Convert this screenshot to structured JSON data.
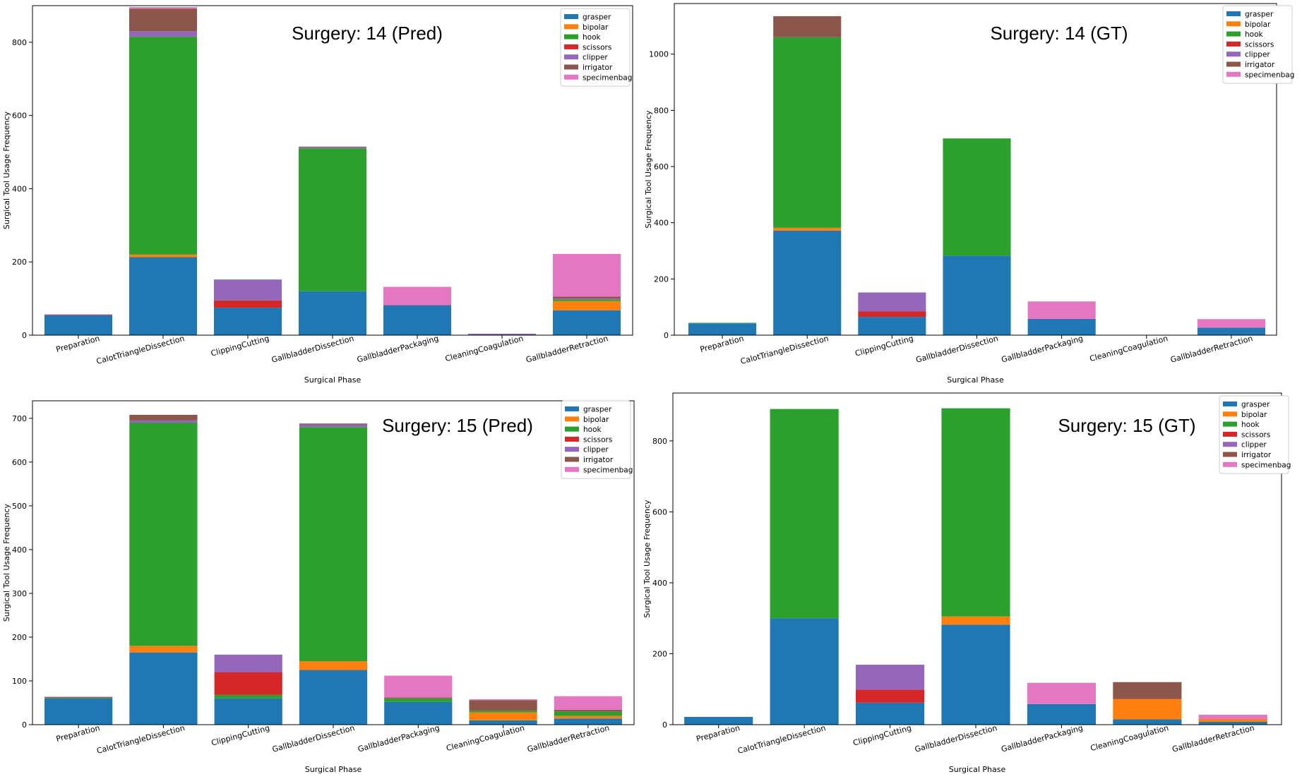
{
  "colors": {
    "grasper": "#1f77b4",
    "bipolar": "#ff7f0e",
    "hook": "#2ca02c",
    "scissors": "#d62728",
    "clipper": "#9467bd",
    "irrigator": "#8c564b",
    "specimenbag": "#e377c2"
  },
  "chart_data": [
    {
      "type": "bar",
      "stacked": true,
      "title": "Surgery: 14 (Pred)",
      "xlabel": "Surgical Phase",
      "ylabel": "Surgical Tool Usage Frequency",
      "ylim": [
        0,
        900
      ],
      "yticks": [
        0,
        200,
        400,
        600,
        800
      ],
      "legend_position": "top-right",
      "categories": [
        "Preparation",
        "CalotTriangleDissection",
        "ClippingCutting",
        "GallbladderDissection",
        "GallbladderPackaging",
        "CleaningCoagulation",
        "GallbladderRetraction"
      ],
      "series": [
        {
          "name": "grasper",
          "values": [
            54,
            213,
            75,
            120,
            82,
            0,
            68
          ]
        },
        {
          "name": "bipolar",
          "values": [
            0,
            7,
            0,
            0,
            0,
            0,
            25
          ]
        },
        {
          "name": "hook",
          "values": [
            0,
            595,
            0,
            390,
            0,
            0,
            5
          ]
        },
        {
          "name": "scissors",
          "values": [
            1,
            0,
            20,
            0,
            0,
            0,
            0
          ]
        },
        {
          "name": "clipper",
          "values": [
            1,
            15,
            57,
            3,
            0,
            4,
            2
          ]
        },
        {
          "name": "irrigator",
          "values": [
            0,
            62,
            0,
            2,
            0,
            0,
            5
          ]
        },
        {
          "name": "specimenbag",
          "values": [
            1,
            4,
            0,
            0,
            50,
            0,
            117
          ]
        }
      ]
    },
    {
      "type": "bar",
      "stacked": true,
      "title": "Surgery: 14 (GT)",
      "xlabel": "Surgical Phase",
      "ylabel": "Surgical Tool Usage Frequency",
      "ylim": [
        0,
        1180
      ],
      "yticks": [
        0,
        200,
        400,
        600,
        800,
        1000
      ],
      "legend_position": "top-right",
      "categories": [
        "Preparation",
        "CalotTriangleDissection",
        "ClippingCutting",
        "GallbladderDissection",
        "GallbladderPackaging",
        "CleaningCoagulation",
        "GallbladderRetraction"
      ],
      "series": [
        {
          "name": "grasper",
          "values": [
            42,
            372,
            65,
            283,
            58,
            0,
            27
          ]
        },
        {
          "name": "bipolar",
          "values": [
            0,
            10,
            0,
            0,
            0,
            0,
            0
          ]
        },
        {
          "name": "hook",
          "values": [
            2,
            678,
            0,
            417,
            0,
            0,
            0
          ]
        },
        {
          "name": "scissors",
          "values": [
            0,
            0,
            20,
            0,
            0,
            0,
            0
          ]
        },
        {
          "name": "clipper",
          "values": [
            0,
            0,
            67,
            0,
            0,
            0,
            0
          ]
        },
        {
          "name": "irrigator",
          "values": [
            0,
            75,
            0,
            0,
            0,
            0,
            0
          ]
        },
        {
          "name": "specimenbag",
          "values": [
            0,
            0,
            0,
            0,
            62,
            0,
            30
          ]
        }
      ]
    },
    {
      "type": "bar",
      "stacked": true,
      "title": "Surgery: 15 (Pred)",
      "xlabel": "Surgical Phase",
      "ylabel": "Surgical Tool Usage Frequency",
      "ylim": [
        0,
        740
      ],
      "yticks": [
        0,
        100,
        200,
        300,
        400,
        500,
        600,
        700
      ],
      "legend_position": "top-right",
      "categories": [
        "Preparation",
        "CalotTriangleDissection",
        "ClippingCutting",
        "GallbladderDissection",
        "GallbladderPackaging",
        "CleaningCoagulation",
        "GallbladderRetraction"
      ],
      "series": [
        {
          "name": "grasper",
          "values": [
            60,
            165,
            60,
            125,
            52,
            10,
            14
          ]
        },
        {
          "name": "bipolar",
          "values": [
            0,
            15,
            0,
            20,
            0,
            18,
            6
          ]
        },
        {
          "name": "hook",
          "values": [
            2,
            510,
            8,
            535,
            8,
            4,
            10
          ]
        },
        {
          "name": "scissors",
          "values": [
            1,
            0,
            52,
            0,
            0,
            0,
            0
          ]
        },
        {
          "name": "clipper",
          "values": [
            0,
            5,
            40,
            6,
            0,
            0,
            0
          ]
        },
        {
          "name": "irrigator",
          "values": [
            0,
            13,
            0,
            2,
            2,
            24,
            4
          ]
        },
        {
          "name": "specimenbag",
          "values": [
            1,
            0,
            0,
            0,
            50,
            2,
            31
          ]
        }
      ]
    },
    {
      "type": "bar",
      "stacked": true,
      "title": "Surgery: 15 (GT)",
      "xlabel": "Surgical Phase",
      "ylabel": "Surgical Tool Usage Frequency",
      "ylim": [
        0,
        935
      ],
      "yticks": [
        0,
        200,
        400,
        600,
        800
      ],
      "legend_position": "top-right",
      "categories": [
        "Preparation",
        "CalotTriangleDissection",
        "ClippingCutting",
        "GallbladderDissection",
        "GallbladderPackaging",
        "CleaningCoagulation",
        "GallbladderRetraction"
      ],
      "series": [
        {
          "name": "grasper",
          "values": [
            22,
            300,
            62,
            282,
            58,
            15,
            8
          ]
        },
        {
          "name": "bipolar",
          "values": [
            0,
            0,
            0,
            23,
            0,
            57,
            8
          ]
        },
        {
          "name": "hook",
          "values": [
            0,
            590,
            0,
            587,
            0,
            0,
            0
          ]
        },
        {
          "name": "scissors",
          "values": [
            0,
            0,
            37,
            0,
            0,
            0,
            0
          ]
        },
        {
          "name": "clipper",
          "values": [
            0,
            0,
            70,
            0,
            0,
            0,
            0
          ]
        },
        {
          "name": "irrigator",
          "values": [
            0,
            0,
            0,
            0,
            0,
            48,
            0
          ]
        },
        {
          "name": "specimenbag",
          "values": [
            0,
            0,
            0,
            0,
            60,
            0,
            12
          ]
        }
      ]
    }
  ]
}
